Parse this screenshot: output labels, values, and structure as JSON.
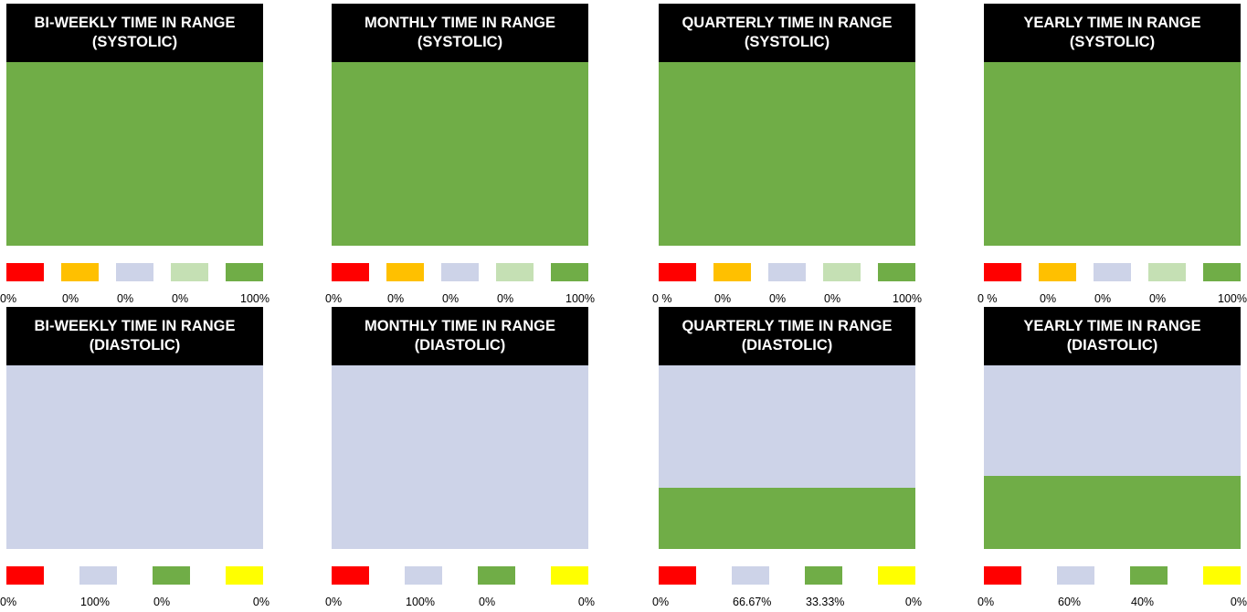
{
  "colors": {
    "red": "#ff0000",
    "orange": "#ffc000",
    "lavender": "#cdd3e8",
    "light_green": "#c5e0b4",
    "green": "#70ad47",
    "yellow": "#ffff00"
  },
  "chart_data": [
    {
      "type": "bar",
      "stacked": true,
      "title": "BI-WEEKLY TIME IN RANGE (SYSTOLIC)",
      "unit": "%",
      "legend_placement": "bottom",
      "segments": [
        {
          "color": "red",
          "value": 0,
          "label": "0%"
        },
        {
          "color": "orange",
          "value": 0,
          "label": "0%"
        },
        {
          "color": "lavender",
          "value": 0,
          "label": "0%"
        },
        {
          "color": "light_green",
          "value": 0,
          "label": "0%"
        },
        {
          "color": "green",
          "value": 100,
          "label": "100%"
        }
      ]
    },
    {
      "type": "bar",
      "stacked": true,
      "title": "MONTHLY TIME IN RANGE (SYSTOLIC)",
      "unit": "%",
      "legend_placement": "bottom",
      "segments": [
        {
          "color": "red",
          "value": 0,
          "label": "0%"
        },
        {
          "color": "orange",
          "value": 0,
          "label": "0%"
        },
        {
          "color": "lavender",
          "value": 0,
          "label": "0%"
        },
        {
          "color": "light_green",
          "value": 0,
          "label": "0%"
        },
        {
          "color": "green",
          "value": 100,
          "label": "100%"
        }
      ]
    },
    {
      "type": "bar",
      "stacked": true,
      "title": "QUARTERLY TIME IN RANGE (SYSTOLIC)",
      "unit": "%",
      "legend_placement": "bottom",
      "segments": [
        {
          "color": "red",
          "value": 0,
          "label": "0 %"
        },
        {
          "color": "orange",
          "value": 0,
          "label": "0%"
        },
        {
          "color": "lavender",
          "value": 0,
          "label": "0%"
        },
        {
          "color": "light_green",
          "value": 0,
          "label": "0%"
        },
        {
          "color": "green",
          "value": 100,
          "label": "100%"
        }
      ]
    },
    {
      "type": "bar",
      "stacked": true,
      "title": "YEARLY TIME IN RANGE (SYSTOLIC)",
      "unit": "%",
      "legend_placement": "bottom",
      "segments": [
        {
          "color": "red",
          "value": 0,
          "label": "0 %"
        },
        {
          "color": "orange",
          "value": 0,
          "label": "0%"
        },
        {
          "color": "lavender",
          "value": 0,
          "label": "0%"
        },
        {
          "color": "light_green",
          "value": 0,
          "label": "0%"
        },
        {
          "color": "green",
          "value": 100,
          "label": "100%"
        }
      ]
    },
    {
      "type": "bar",
      "stacked": true,
      "title": "BI-WEEKLY TIME IN RANGE (DIASTOLIC)",
      "unit": "%",
      "legend_placement": "bottom",
      "segments": [
        {
          "color": "red",
          "value": 0,
          "label": "0%"
        },
        {
          "color": "lavender",
          "value": 100,
          "label": "100%"
        },
        {
          "color": "green",
          "value": 0,
          "label": "0%"
        },
        {
          "color": "yellow",
          "value": 0,
          "label": "0%"
        }
      ]
    },
    {
      "type": "bar",
      "stacked": true,
      "title": "MONTHLY TIME IN RANGE (DIASTOLIC)",
      "unit": "%",
      "legend_placement": "bottom",
      "segments": [
        {
          "color": "red",
          "value": 0,
          "label": "0%"
        },
        {
          "color": "lavender",
          "value": 100,
          "label": "100%"
        },
        {
          "color": "green",
          "value": 0,
          "label": "0%"
        },
        {
          "color": "yellow",
          "value": 0,
          "label": "0%"
        }
      ]
    },
    {
      "type": "bar",
      "stacked": true,
      "title": "QUARTERLY TIME IN RANGE (DIASTOLIC)",
      "unit": "%",
      "legend_placement": "bottom",
      "segments": [
        {
          "color": "red",
          "value": 0,
          "label": "0%"
        },
        {
          "color": "lavender",
          "value": 66.67,
          "label": "66.67%"
        },
        {
          "color": "green",
          "value": 33.33,
          "label": "33.33%"
        },
        {
          "color": "yellow",
          "value": 0,
          "label": "0%"
        }
      ]
    },
    {
      "type": "bar",
      "stacked": true,
      "title": "YEARLY TIME IN RANGE (DIASTOLIC)",
      "unit": "%",
      "legend_placement": "bottom",
      "segments": [
        {
          "color": "red",
          "value": 0,
          "label": "0%"
        },
        {
          "color": "lavender",
          "value": 60,
          "label": "60%"
        },
        {
          "color": "green",
          "value": 40,
          "label": "40%"
        },
        {
          "color": "yellow",
          "value": 0,
          "label": "0%"
        }
      ]
    }
  ]
}
